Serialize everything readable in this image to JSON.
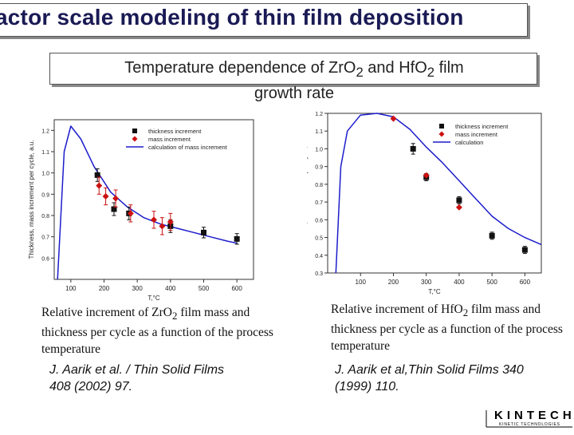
{
  "slide": {
    "title": "actor scale modeling of thin film deposition",
    "subtitle_line1": "Temperature dependence of ZrO",
    "subtitle_sub1": "2",
    "subtitle_mid": " and HfO",
    "subtitle_sub2": "2",
    "subtitle_end": " film",
    "subtitle_line2": "growth rate"
  },
  "captions": {
    "left_a": "Relative increment of ZrO",
    "left_sub": "2",
    "left_b": " film mass and thickness per cycle as a function of the process temperature",
    "right_a": "Relative increment of HfO",
    "right_sub": "2",
    "right_b": " film mass and thickness per cycle as a function of the process temperature"
  },
  "references": {
    "left": "J. Aarik et al. / Thin Solid Films 408 (2002) 97.",
    "right": "J. Aarik et al,Thin Solid Films 340 (1999) 110."
  },
  "logo": {
    "name": "KINTECH",
    "tagline": "KINETIC TECHNOLOGIES"
  },
  "colors": {
    "title": "#1a1a55",
    "calc_line": "#1c1ccc",
    "mass_marker": "#cc1111",
    "thickness_marker": "#111111"
  },
  "chart_data": [
    {
      "type": "scatter",
      "xlabel": "T,°C",
      "ylabel": "Thickness, mass increment per cycle, a.u.",
      "xlim": [
        50,
        650
      ],
      "ylim": [
        0.5,
        1.25
      ],
      "xticks": [
        100,
        200,
        300,
        400,
        500,
        600
      ],
      "yticks": [
        0.6,
        0.7,
        0.8,
        0.9,
        1.0,
        1.1,
        1.2
      ],
      "ytick_labels": [
        "0.6",
        "0.7",
        "0.8",
        "0.9",
        "1.0",
        "1.1",
        "1.2"
      ],
      "legend": [
        "thickness increment",
        "mass increment",
        "calculation of mass increment"
      ],
      "legend_position": "top-right",
      "series": [
        {
          "name": "thickness increment",
          "marker": "square",
          "x": [
            180,
            230,
            275,
            400,
            500,
            600
          ],
          "y": [
            0.99,
            0.83,
            0.81,
            0.75,
            0.72,
            0.69
          ],
          "err": [
            0.03,
            0.03,
            0.03,
            0.03,
            0.025,
            0.025
          ]
        },
        {
          "name": "mass increment",
          "marker": "diamond",
          "x": [
            185,
            205,
            235,
            280,
            350,
            375,
            400
          ],
          "y": [
            0.94,
            0.89,
            0.88,
            0.81,
            0.78,
            0.75,
            0.77
          ],
          "err": [
            0.04,
            0.04,
            0.04,
            0.04,
            0.04,
            0.04,
            0.04
          ]
        },
        {
          "name": "calculation of mass increment",
          "type": "line",
          "x": [
            60,
            80,
            100,
            130,
            170,
            220,
            270,
            320,
            370,
            420,
            470,
            520,
            570,
            600
          ],
          "y": [
            0.5,
            1.1,
            1.22,
            1.16,
            1.03,
            0.91,
            0.84,
            0.79,
            0.76,
            0.74,
            0.72,
            0.7,
            0.68,
            0.67
          ]
        }
      ]
    },
    {
      "type": "scatter",
      "xlabel": "T,°C",
      "ylabel": "Thickness, mass increment per cycle, a.u.",
      "xlim": [
        0,
        650
      ],
      "ylim": [
        0.3,
        1.2
      ],
      "xticks": [
        100,
        200,
        300,
        400,
        500,
        600
      ],
      "yticks": [
        0.3,
        0.4,
        0.5,
        0.6,
        0.7,
        0.8,
        0.9,
        1.0,
        1.1,
        1.2
      ],
      "ytick_labels": [
        "0.3",
        "0.4",
        "0.5",
        "0.6",
        "0.7",
        "0.8",
        "0.9",
        "1.0",
        "1.1",
        "1.2"
      ],
      "legend": [
        "thickness increment",
        "mass increment",
        "calculation"
      ],
      "legend_position": "top-right",
      "series": [
        {
          "name": "thickness increment",
          "marker": "square",
          "x": [
            300,
            400,
            500,
            600
          ],
          "y": [
            0.84,
            0.71,
            0.51,
            0.43
          ],
          "err": [
            0.02,
            0.02,
            0.02,
            0.02
          ]
        },
        {
          "name": "mass increment",
          "marker": "diamond",
          "x": [
            200,
            300,
            400
          ],
          "y": [
            1.17,
            0.85,
            0.67
          ],
          "err": [
            0.0,
            0.0,
            0.0
          ]
        },
        {
          "name": "thickness calc points",
          "marker": "square",
          "x": [
            260
          ],
          "y": [
            1.0
          ],
          "err": [
            0.03
          ]
        },
        {
          "name": "calculation",
          "type": "line",
          "x": [
            25,
            40,
            60,
            100,
            150,
            200,
            250,
            300,
            350,
            400,
            450,
            500,
            550,
            600,
            650
          ],
          "y": [
            0.3,
            0.9,
            1.1,
            1.19,
            1.2,
            1.18,
            1.11,
            1.01,
            0.92,
            0.82,
            0.72,
            0.62,
            0.55,
            0.5,
            0.46
          ]
        }
      ]
    }
  ]
}
